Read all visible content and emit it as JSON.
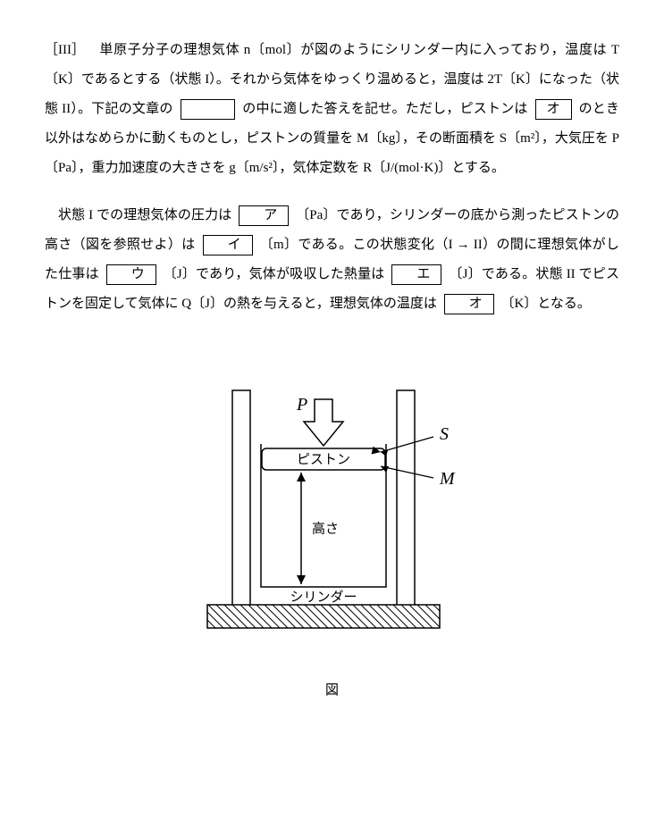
{
  "problem_number": "［III］",
  "para1_seg1": "　単原子分子の理想気体 n〔mol〕が図のようにシリンダー内に入っており，温度は T〔K〕であるとする（状態 I）。それから気体をゆっくり温めると，温度は 2T〔K〕になった（状態 II）。下記の文章の",
  "para1_seg2": "の中に適した答えを記せ。ただし，ピストンは",
  "blank_o": "オ",
  "para1_seg3": "のとき以外はなめらかに動くものとし，ピストンの質量を M〔kg〕，その断面積を S〔m²〕，大気圧を P〔Pa〕，重力加速度の大きさを g〔m/s²〕，気体定数を R〔J/(mol·K)〕とする。",
  "para2_seg1": "状態 I での理想気体の圧力は",
  "blank_a": "ア",
  "para2_seg2": "〔Pa〕であり，シリンダーの底から測ったピストンの高さ（図を参照せよ）は",
  "blank_i": "イ",
  "para2_seg3": "〔m〕である。この状態変化（I → II）の間に理想気体がした仕事は",
  "blank_u": "ウ",
  "para2_seg4": "〔J〕であり，気体が吸収した熱量は",
  "blank_e": "エ",
  "para2_seg5": "〔J〕である。状態 II でピストンを固定して気体に Q〔J〕の熱を与えると，理想気体の温度は",
  "blank_o2": "オ",
  "para2_seg6": "〔K〕となる。",
  "figure": {
    "label_P": "P",
    "label_S": "S",
    "label_M": "M",
    "label_piston": "ピストン",
    "label_height": "高さ",
    "label_cylinder": "シリンダー",
    "caption": "図",
    "font_family": "serif",
    "font_size_italic": 20,
    "font_size_jp": 15,
    "stroke_color": "#000000",
    "stroke_width": 1.5
  }
}
